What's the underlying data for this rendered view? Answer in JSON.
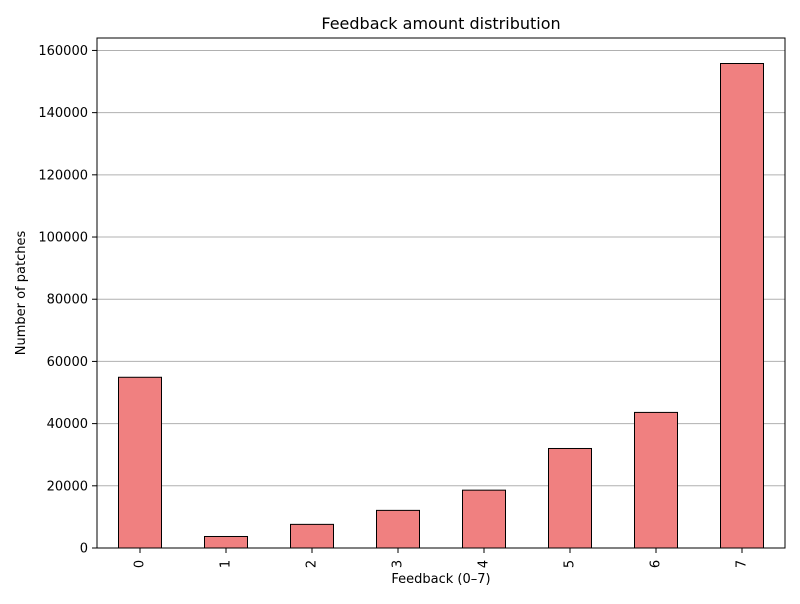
{
  "chart_data": {
    "type": "bar",
    "title": "Feedback amount distribution",
    "xlabel": "Feedback (0–7)",
    "ylabel": "Number of patches",
    "categories": [
      "0",
      "1",
      "2",
      "3",
      "4",
      "5",
      "6",
      "7"
    ],
    "values": [
      54900,
      3700,
      7600,
      12100,
      18600,
      32000,
      43600,
      155800
    ],
    "ylim": [
      0,
      164000
    ],
    "yticks": [
      0,
      20000,
      40000,
      60000,
      80000,
      100000,
      120000,
      140000,
      160000
    ],
    "grid": "y",
    "legend": "none",
    "bar_color": "#f08080",
    "edge_color": "#000000",
    "grid_color": "#b0b0b0"
  }
}
